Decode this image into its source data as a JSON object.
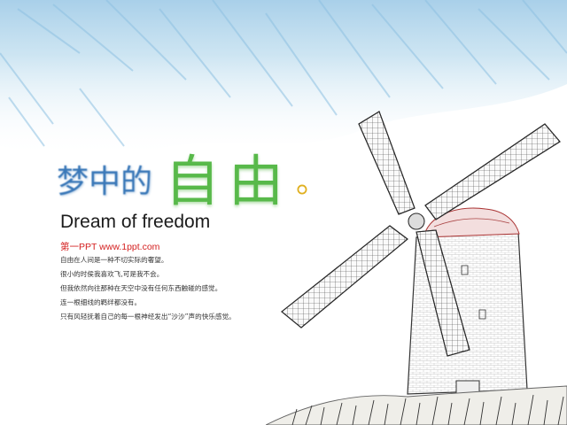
{
  "slide": {
    "title_small": "梦中的",
    "title_big": "自由",
    "title_end": "。",
    "subtitle": "Dream of freedom",
    "site": "第一PPT www.1ppt.com",
    "lines": [
      "自由在人间是一种不切实际的奢望。",
      "很小的时侯我喜欢飞,可是我不会。",
      "但我依然向往那种在天空中没有任何东西触碰的感觉。",
      "连一根细线的羁绊都没有。",
      "只有风轻抚着自己的每一根神经发出“沙沙”声的快乐感觉。"
    ]
  },
  "colors": {
    "title_small": "#3a78b8",
    "title_big": "#58b94a",
    "dot": "#e0b020",
    "site": "#d42020",
    "sky": "#a9cfe6"
  }
}
